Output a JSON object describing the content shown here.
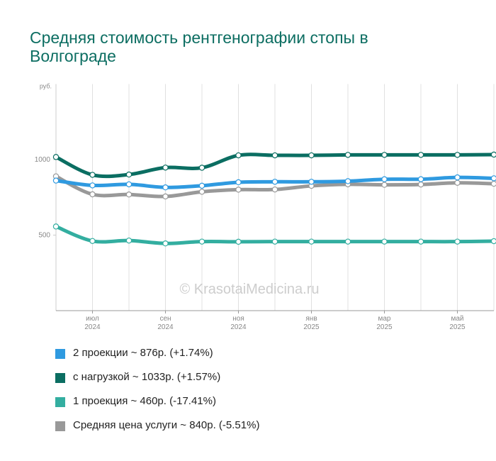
{
  "title": "Средняя стоимость рентгенографии стопы в Волгограде",
  "watermark": "© KrasotaiMedicina.ru",
  "chart_data": {
    "type": "line",
    "yunit": "руб.",
    "ylim": [
      0,
      1500
    ],
    "yticks": [
      500,
      1000
    ],
    "grid": true,
    "x": [
      "2024-05",
      "2024-06",
      "2024-07",
      "2024-08",
      "2024-09",
      "2024-10",
      "2024-11",
      "2024-12",
      "2025-01",
      "2025-02",
      "2025-03",
      "2025-04",
      "2025-05"
    ],
    "xtick_labels": [
      {
        "index": 1,
        "month": "июл",
        "year": "2024"
      },
      {
        "index": 3,
        "month": "сен",
        "year": "2024"
      },
      {
        "index": 5,
        "month": "ноя",
        "year": "2024"
      },
      {
        "index": 7,
        "month": "янв",
        "year": "2025"
      },
      {
        "index": 9,
        "month": "мар",
        "year": "2025"
      },
      {
        "index": 11,
        "month": "май",
        "year": "2025"
      }
    ],
    "series": [
      {
        "name": "2 проекции",
        "color": "#2f9ae0",
        "values": [
          861,
          829,
          836,
          816,
          827,
          850,
          853,
          853,
          857,
          870,
          870,
          882,
          876
        ]
      },
      {
        "name": "с нагрузкой",
        "color": "#0b6e62",
        "values": [
          1017,
          899,
          901,
          947,
          946,
          1028,
          1028,
          1028,
          1031,
          1031,
          1031,
          1031,
          1033
        ]
      },
      {
        "name": "1 проекция",
        "color": "#33aea0",
        "values": [
          557,
          461,
          464,
          445,
          457,
          456,
          457,
          457,
          457,
          457,
          457,
          457,
          460
        ]
      },
      {
        "name": "Средняя цена услуги",
        "color": "#999999",
        "values": [
          889,
          770,
          769,
          756,
          787,
          801,
          802,
          826,
          836,
          833,
          835,
          846,
          840
        ]
      }
    ]
  },
  "legend": {
    "items": [
      {
        "label": "2 проекции ~ 876р. (+1.74%)",
        "color": "#2f9ae0"
      },
      {
        "label": "с нагрузкой ~ 1033р. (+1.57%)",
        "color": "#0b6e62"
      },
      {
        "label": "1 проекция ~ 460р. (-17.41%)",
        "color": "#33aea0"
      },
      {
        "label": "Средняя цена услуги ~ 840р. (-5.51%)",
        "color": "#999999"
      }
    ]
  }
}
